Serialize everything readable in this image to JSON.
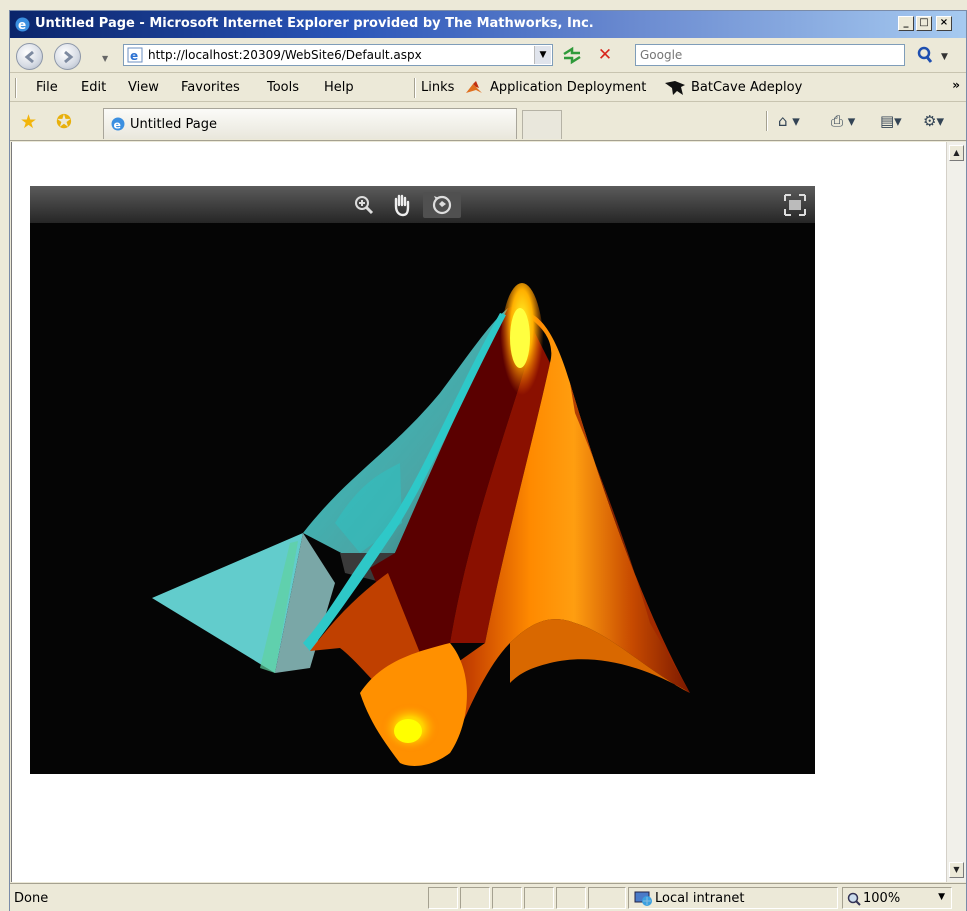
{
  "window": {
    "title": "Untitled Page - Microsoft Internet Explorer provided by The Mathworks, Inc.",
    "minimize_icon": "minimize-icon",
    "maximize_icon": "maximize-icon",
    "close_icon": "close-icon"
  },
  "address": {
    "url": "http://localhost:20309/WebSite6/Default.aspx",
    "search_placeholder": "Google"
  },
  "menu": {
    "items": [
      "File",
      "Edit",
      "View",
      "Favorites",
      "Tools",
      "Help"
    ],
    "links_label": "Links",
    "link1": "Application Deployment",
    "link2": "BatCave Adeploy"
  },
  "tabs": {
    "active_label": "Untitled Page"
  },
  "viewer": {
    "tools": [
      "zoom-in-icon",
      "pan-hand-icon",
      "rotate-3d-icon",
      "fullscreen-icon"
    ],
    "active_tool": "rotate-3d-icon",
    "surface_colors": [
      "#ffff00",
      "#ff9a00",
      "#ff6a00",
      "#c84400",
      "#7a0000",
      "#2ec8c8",
      "#5fc9c9",
      "#6e9a9a"
    ]
  },
  "status": {
    "text": "Done",
    "zone": "Local intranet",
    "zoom": "100%"
  },
  "colors": {
    "title_start": "#0a246a",
    "title_end": "#a6caf0",
    "chrome": "#ece9d8",
    "viewer_bg": "#050505"
  }
}
